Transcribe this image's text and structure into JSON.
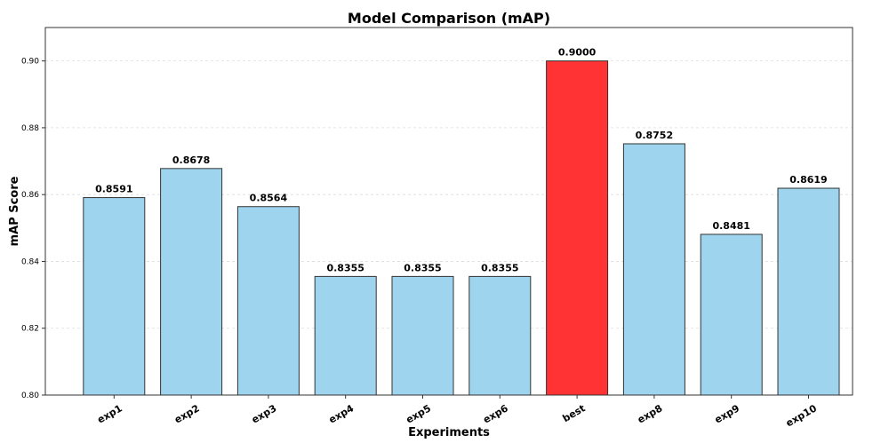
{
  "chart_data": {
    "type": "bar",
    "title": "Model Comparison (mAP)",
    "xlabel": "Experiments",
    "ylabel": "mAP Score",
    "categories": [
      "exp1",
      "exp2",
      "exp3",
      "exp4",
      "exp5",
      "exp6",
      "best",
      "exp8",
      "exp9",
      "exp10"
    ],
    "values": [
      0.8591,
      0.8678,
      0.8564,
      0.8355,
      0.8355,
      0.8355,
      0.9,
      0.8752,
      0.8481,
      0.8619
    ],
    "value_labels": [
      "0.8591",
      "0.8678",
      "0.8564",
      "0.8355",
      "0.8355",
      "0.8355",
      "0.9000",
      "0.8752",
      "0.8481",
      "0.8619"
    ],
    "ylim": [
      0.8,
      0.91
    ],
    "yticks": [
      0.8,
      0.82,
      0.84,
      0.86,
      0.88,
      0.9
    ],
    "ytick_labels": [
      "0.80",
      "0.82",
      "0.84",
      "0.86",
      "0.88",
      "0.90"
    ],
    "grid": "horizontal dashed",
    "colors": {
      "bar": "#9ed4ee",
      "highlight": "#ff3333",
      "bar_edge": "#333333",
      "grid": "#dddddd",
      "axis": "#333333"
    },
    "highlight_category": "best"
  }
}
